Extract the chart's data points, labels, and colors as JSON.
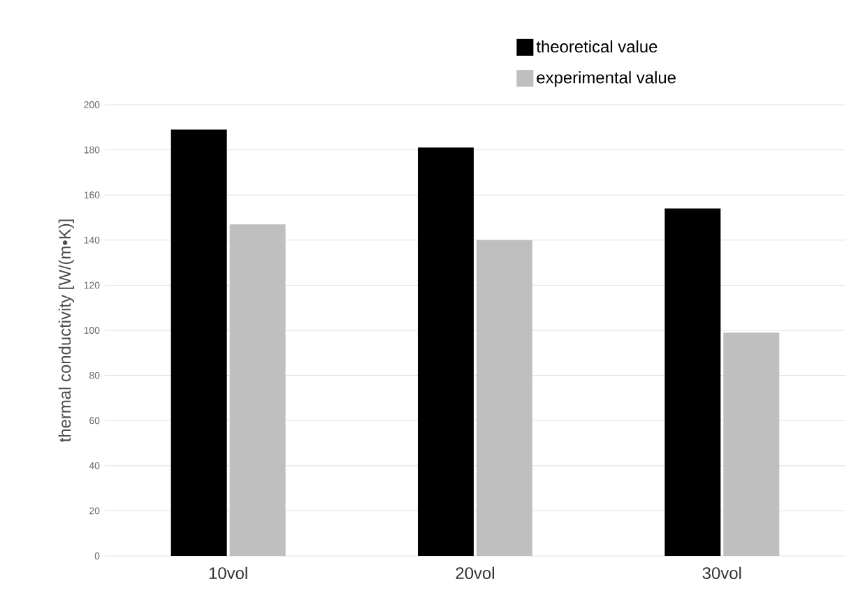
{
  "chart_data": {
    "type": "bar",
    "categories": [
      "10vol",
      "20vol",
      "30vol"
    ],
    "ylabel": "thermal conductivity [W/(m•K)]",
    "series": [
      {
        "name": "theoretical value",
        "color": "#000000",
        "values": [
          189,
          181,
          154
        ]
      },
      {
        "name": "experimental value",
        "color": "#bfbfbf",
        "values": [
          147,
          140,
          99
        ]
      }
    ],
    "ylim": [
      0,
      200
    ],
    "yticks": [
      0,
      20,
      40,
      60,
      80,
      100,
      120,
      140,
      160,
      180,
      200
    ],
    "grid": "y",
    "legend": "top right"
  }
}
